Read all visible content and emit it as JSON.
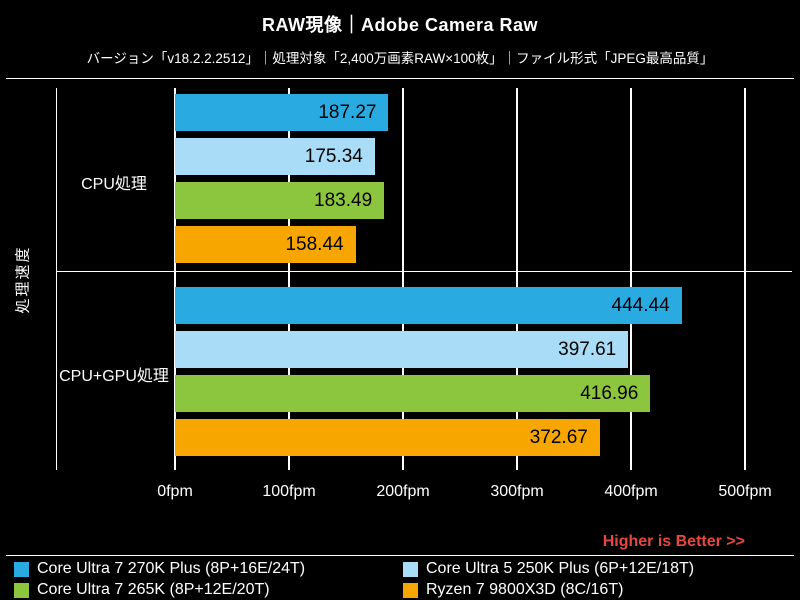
{
  "header": {
    "title": "RAW現像｜Adobe Camera Raw",
    "subtitle": "バージョン「v18.2.2.2512」｜処理対象「2,400万画素RAW×100枚」｜ファイル形式「JPEG最高品質」"
  },
  "chart_data": {
    "type": "bar",
    "orientation": "horizontal",
    "title": "RAW現像｜Adobe Camera Raw",
    "ylabel": "処理速度",
    "unit": "fpm",
    "xlim": [
      0,
      500
    ],
    "x_ticks": [
      "0fpm",
      "100fpm",
      "200fpm",
      "300fpm",
      "400fpm",
      "500fpm"
    ],
    "grid": true,
    "background": "#000000",
    "categories": [
      "CPU処理",
      "CPU+GPU処理"
    ],
    "series": [
      {
        "name": "Core Ultra 7 270K Plus (8P+16E/24T)",
        "color": "#29abe2",
        "values": [
          187.27,
          444.44
        ]
      },
      {
        "name": "Core Ultra 5 250K Plus (6P+12E/18T)",
        "color": "#a9dcf6",
        "values": [
          175.34,
          397.61
        ]
      },
      {
        "name": "Core Ultra 7 265K (8P+12E/20T)",
        "color": "#8cc63f",
        "values": [
          183.49,
          416.96
        ]
      },
      {
        "name": "Ryzen 7 9800X3D (8C/16T)",
        "color": "#f7a600",
        "values": [
          158.44,
          372.67
        ]
      }
    ],
    "note": "Higher is Better >>",
    "note_color": "#e8473f",
    "legend_position": "bottom"
  }
}
